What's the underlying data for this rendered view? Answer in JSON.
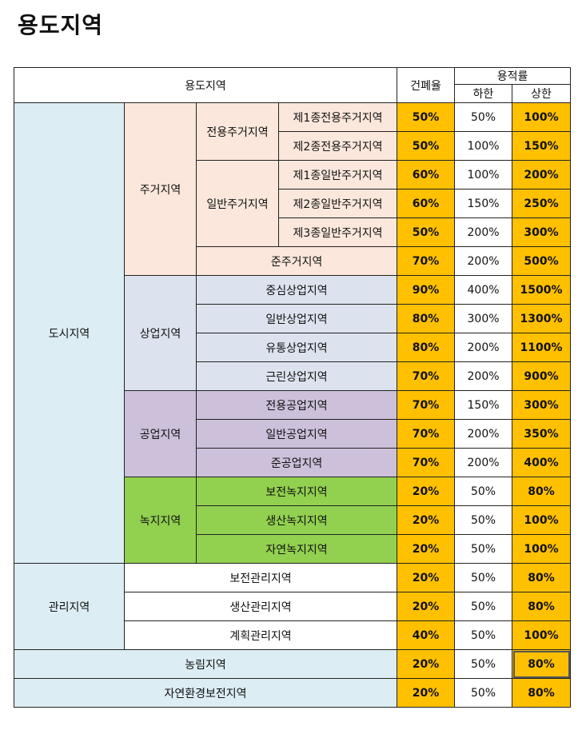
{
  "title": "용도지역",
  "header": {
    "zone": "용도지역",
    "bcr": "건폐율",
    "far": "용적률",
    "far_min": "하한",
    "far_max": "상한"
  },
  "groups": {
    "urban": "도시지역",
    "residential": "주거지역",
    "exclusive_res": "전용주거지역",
    "general_res": "일반주거지역",
    "commercial": "상업지역",
    "industrial": "공업지역",
    "green": "녹지지역",
    "management": "관리지역"
  },
  "rows": [
    {
      "name": "제1종전용주거지역",
      "bcr": "50%",
      "min": "50%",
      "max": "100%"
    },
    {
      "name": "제2종전용주거지역",
      "bcr": "50%",
      "min": "100%",
      "max": "150%"
    },
    {
      "name": "제1종일반주거지역",
      "bcr": "60%",
      "min": "100%",
      "max": "200%"
    },
    {
      "name": "제2종일반주거지역",
      "bcr": "60%",
      "min": "150%",
      "max": "250%"
    },
    {
      "name": "제3종일반주거지역",
      "bcr": "50%",
      "min": "200%",
      "max": "300%"
    },
    {
      "name": "준주거지역",
      "bcr": "70%",
      "min": "200%",
      "max": "500%"
    },
    {
      "name": "중심상업지역",
      "bcr": "90%",
      "min": "400%",
      "max": "1500%"
    },
    {
      "name": "일반상업지역",
      "bcr": "80%",
      "min": "300%",
      "max": "1300%"
    },
    {
      "name": "유통상업지역",
      "bcr": "80%",
      "min": "200%",
      "max": "1100%"
    },
    {
      "name": "근린상업지역",
      "bcr": "70%",
      "min": "200%",
      "max": "900%"
    },
    {
      "name": "전용공업지역",
      "bcr": "70%",
      "min": "150%",
      "max": "300%"
    },
    {
      "name": "일반공업지역",
      "bcr": "70%",
      "min": "200%",
      "max": "350%"
    },
    {
      "name": "준공업지역",
      "bcr": "70%",
      "min": "200%",
      "max": "400%"
    },
    {
      "name": "보전녹지지역",
      "bcr": "20%",
      "min": "50%",
      "max": "80%"
    },
    {
      "name": "생산녹지지역",
      "bcr": "20%",
      "min": "50%",
      "max": "100%"
    },
    {
      "name": "자연녹지지역",
      "bcr": "20%",
      "min": "50%",
      "max": "100%"
    },
    {
      "name": "보전관리지역",
      "bcr": "20%",
      "min": "50%",
      "max": "80%"
    },
    {
      "name": "생산관리지역",
      "bcr": "20%",
      "min": "50%",
      "max": "80%"
    },
    {
      "name": "계획관리지역",
      "bcr": "40%",
      "min": "50%",
      "max": "100%"
    },
    {
      "name": "농림지역",
      "bcr": "20%",
      "min": "50%",
      "max": "80%"
    },
    {
      "name": "자연환경보전지역",
      "bcr": "20%",
      "min": "50%",
      "max": "80%"
    }
  ],
  "colors": {
    "urban": "#dcedf3",
    "residential": "#fbe7db",
    "commercial": "#dce3ee",
    "industrial": "#ccc0da",
    "green": "#92d04f",
    "highlight": "#ffc000"
  }
}
